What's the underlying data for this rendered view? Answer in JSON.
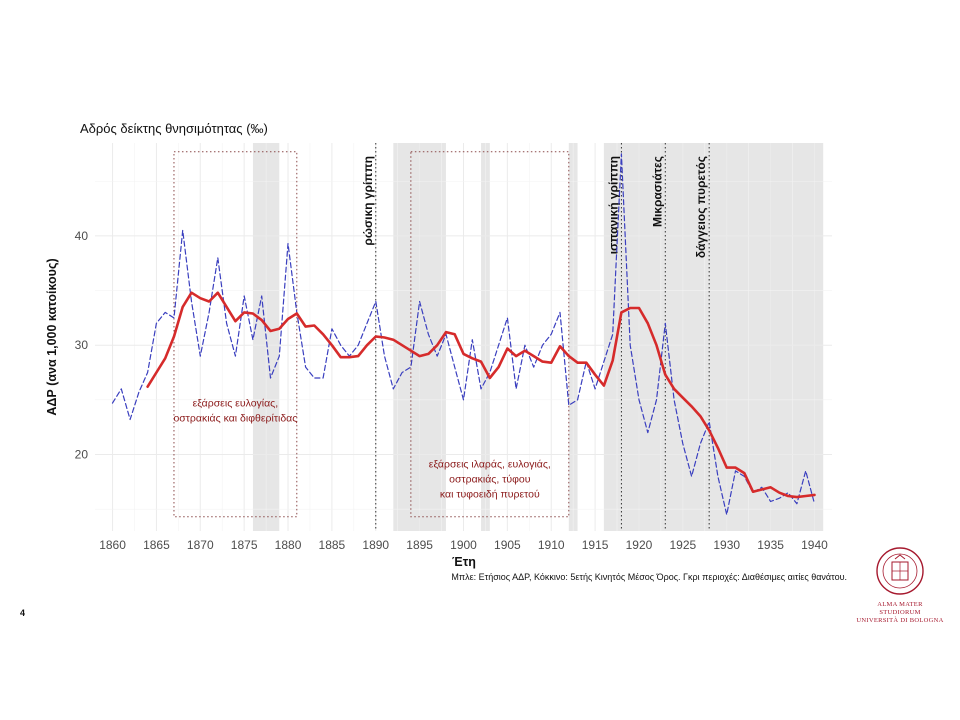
{
  "page_number": "4",
  "logo": {
    "line1": "ALMA MATER STUDIORUM",
    "line2": "UNIVERSITÀ DI BOLOGNA"
  },
  "chart_data": {
    "type": "line",
    "title": "Αδρός δείκτης θνησιμότητας (‰)",
    "xlabel": "Έτη",
    "ylabel": "ΑΔΡ (ανα 1,000 κατοίκους)",
    "caption": "Μπλε: Ετήσιος ΑΔΡ, Κόκκινο: 5ετής Κινητός Μέσος Όρος. Γκρι περιοχές: Διαθέσιμες αιτίες θανάτου.",
    "xlim": [
      1858,
      1942
    ],
    "ylim": [
      13,
      48.5
    ],
    "x_ticks": [
      1860,
      1865,
      1870,
      1875,
      1880,
      1885,
      1890,
      1895,
      1900,
      1905,
      1910,
      1915,
      1920,
      1925,
      1930,
      1935,
      1940
    ],
    "y_ticks": [
      20,
      30,
      40
    ],
    "grid": true,
    "shaded_periods": [
      [
        1876,
        1879
      ],
      [
        1892,
        1898
      ],
      [
        1902,
        1903
      ],
      [
        1912,
        1913
      ],
      [
        1916,
        1941
      ]
    ],
    "series": [
      {
        "name": "Μπλε: Ετήσιος ΑΔΡ",
        "color": "#3a3fbf",
        "style": "dashed",
        "x": [
          1860,
          1861,
          1862,
          1863,
          1864,
          1865,
          1866,
          1867,
          1868,
          1869,
          1870,
          1871,
          1872,
          1873,
          1874,
          1875,
          1876,
          1877,
          1878,
          1879,
          1880,
          1881,
          1882,
          1883,
          1884,
          1885,
          1886,
          1887,
          1888,
          1889,
          1890,
          1891,
          1892,
          1893,
          1894,
          1895,
          1896,
          1897,
          1898,
          1899,
          1900,
          1901,
          1902,
          1903,
          1904,
          1905,
          1906,
          1907,
          1908,
          1909,
          1910,
          1911,
          1912,
          1913,
          1914,
          1915,
          1916,
          1917,
          1918,
          1919,
          1920,
          1921,
          1922,
          1923,
          1924,
          1925,
          1926,
          1927,
          1928,
          1929,
          1930,
          1931,
          1932,
          1933,
          1934,
          1935,
          1936,
          1937,
          1938,
          1939,
          1940
        ],
        "values": [
          24.7,
          26.0,
          23.2,
          25.7,
          27.5,
          32.0,
          33.0,
          32.5,
          40.5,
          34.0,
          29.0,
          33.0,
          38.0,
          32.0,
          29.0,
          34.5,
          30.5,
          34.5,
          27.0,
          29.0,
          39.3,
          33.0,
          28.0,
          27.0,
          27.0,
          31.5,
          30.0,
          29.0,
          30.0,
          32.0,
          34.0,
          29.0,
          26.0,
          27.5,
          28.0,
          34.0,
          31.0,
          29.0,
          31.0,
          28.0,
          25.0,
          30.5,
          26.0,
          27.5,
          30.0,
          32.5,
          26.0,
          30.0,
          28.0,
          30.0,
          31.0,
          33.0,
          24.5,
          25.0,
          28.5,
          26.0,
          28.5,
          31.0,
          47.5,
          30.0,
          25.0,
          22.0,
          25.0,
          32.0,
          25.0,
          21.0,
          18.0,
          21.0,
          23.0,
          18.0,
          14.5,
          18.5,
          18.0,
          16.5,
          17.0,
          15.7,
          16.0,
          16.5,
          15.5,
          18.5,
          15.5
        ]
      },
      {
        "name": "Κόκκινο: 5ετής Κινητός Μέσος Όρος",
        "color": "#d62b2b",
        "style": "solid",
        "x": [
          1864,
          1865,
          1866,
          1867,
          1868,
          1869,
          1870,
          1871,
          1872,
          1873,
          1874,
          1875,
          1876,
          1877,
          1878,
          1879,
          1880,
          1881,
          1882,
          1883,
          1884,
          1885,
          1886,
          1887,
          1888,
          1889,
          1890,
          1891,
          1892,
          1893,
          1894,
          1895,
          1896,
          1897,
          1898,
          1899,
          1900,
          1901,
          1902,
          1903,
          1904,
          1905,
          1906,
          1907,
          1908,
          1909,
          1910,
          1911,
          1912,
          1913,
          1914,
          1915,
          1916,
          1917,
          1918,
          1919,
          1920,
          1921,
          1922,
          1923,
          1924,
          1925,
          1926,
          1927,
          1928,
          1929,
          1930,
          1931,
          1932,
          1933,
          1934,
          1935,
          1936,
          1937,
          1938,
          1939,
          1940
        ],
        "values": [
          26.2,
          27.5,
          28.8,
          30.8,
          33.5,
          34.8,
          34.3,
          34.0,
          34.8,
          33.5,
          32.2,
          33.0,
          32.9,
          32.3,
          31.3,
          31.5,
          32.4,
          32.9,
          31.7,
          31.8,
          31.0,
          30.0,
          28.9,
          28.9,
          29.0,
          30.0,
          30.8,
          30.7,
          30.5,
          30.0,
          29.5,
          29.0,
          29.2,
          30.0,
          31.2,
          31.0,
          29.2,
          28.8,
          28.5,
          27.0,
          28.0,
          29.7,
          29.0,
          29.5,
          29.0,
          28.5,
          28.4,
          29.9,
          29.0,
          28.4,
          28.4,
          27.3,
          26.3,
          28.6,
          33.0,
          33.4,
          33.4,
          32.0,
          30.0,
          27.3,
          26.0,
          25.2,
          24.4,
          23.5,
          22.2,
          20.6,
          18.8,
          18.8,
          18.3,
          16.6,
          16.8,
          17.0,
          16.5,
          16.2,
          16.1,
          16.2,
          16.3
        ]
      }
    ],
    "events": [
      {
        "x": 1890,
        "label": "ρώσικη γρίππη"
      },
      {
        "x": 1918,
        "label": "ισπανική γρίππη"
      },
      {
        "x": 1923,
        "label": "Μικρασιάτες"
      },
      {
        "x": 1928,
        "label": "δάγγειος πυρετός"
      }
    ],
    "annotations": [
      {
        "x_range": [
          1867,
          1881
        ],
        "y_range": [
          14.3,
          47.7
        ],
        "lines": [
          "εξάρσεις ευλογίας,",
          "οστρακιάς και διφθερίτιδας"
        ]
      },
      {
        "x_range": [
          1894,
          1912
        ],
        "y_range": [
          14.3,
          47.7
        ],
        "lines": [
          "εξάρσεις ιλαράς, ευλογιάς,",
          "οστρακιάς, τύφου",
          "και τυφοειδή πυρετού"
        ]
      }
    ]
  }
}
